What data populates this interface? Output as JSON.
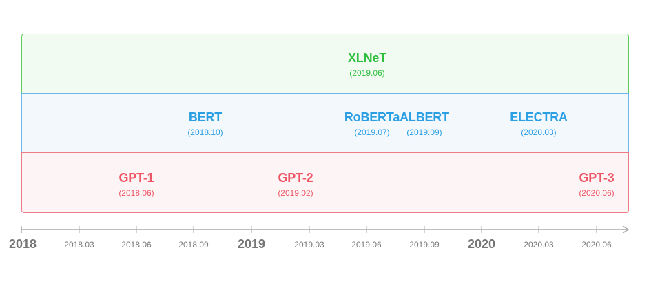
{
  "bands": {
    "green": {
      "color": "#2fbf3f",
      "border": "#5ccc5c",
      "fill": "#f2fbf2"
    },
    "blue": {
      "color": "#2b9fe3",
      "border": "#6db7ea",
      "fill": "#f3f8fd"
    },
    "red": {
      "color": "#ee5666",
      "border": "#ee7a88",
      "fill": "#fdf4f5"
    }
  },
  "models": {
    "xlnet": {
      "name": "XLNeT",
      "date": "(2019.06)"
    },
    "bert": {
      "name": "BERT",
      "date": "(2018.10)"
    },
    "roberta": {
      "name": "RoBERTa",
      "date": "(2019.07)"
    },
    "albert": {
      "name": "ALBERT",
      "date": "(2019.09)"
    },
    "electra": {
      "name": "ELECTRA",
      "date": "(2020.03)"
    },
    "gpt1": {
      "name": "GPT-1",
      "date": "(2018.06)"
    },
    "gpt2": {
      "name": "GPT-2",
      "date": "(2019.02)"
    },
    "gpt3": {
      "name": "GPT-3",
      "date": "(2020.06)"
    }
  },
  "axis": {
    "labels": [
      "2018",
      "2018.03",
      "2018.06",
      "2018.09",
      "2019",
      "2019.03",
      "2019.06",
      "2019.09",
      "2020",
      "2020.03",
      "2020.06"
    ],
    "major": [
      "2018",
      "2019",
      "2020"
    ],
    "color": "#aaaaaa"
  }
}
